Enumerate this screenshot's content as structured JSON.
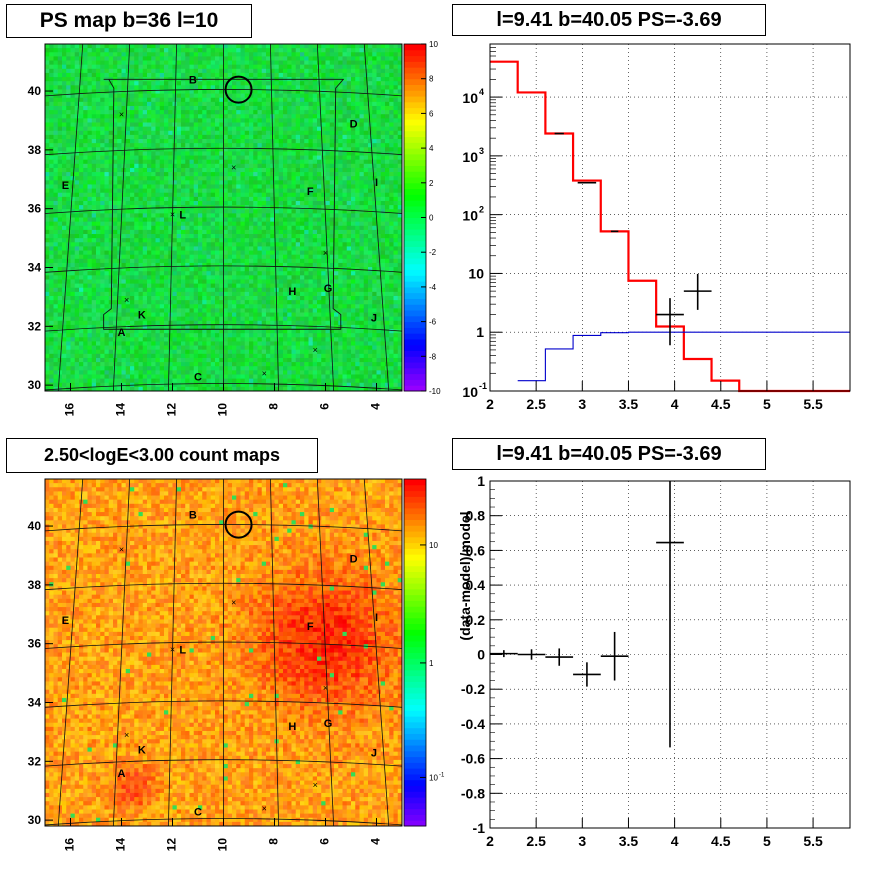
{
  "panels": {
    "ps_map": {
      "title": "PS map b=36 l=10"
    },
    "count_map": {
      "title": "2.50<logE<3.00 count maps"
    },
    "spectrum": {
      "title": "l=9.41 b=40.05 PS=-3.69"
    },
    "residual": {
      "title": "l=9.41 b=40.05 PS=-3.69"
    }
  },
  "chart_data": [
    {
      "type": "heatmap",
      "title": "PS map b=36 l=10",
      "xlabel": "",
      "ylabel": "",
      "x_range": [
        17,
        3
      ],
      "y_range": [
        29.8,
        41.6
      ],
      "x_ticks": [
        "16",
        "14",
        "12",
        "10",
        "8",
        "6",
        "4"
      ],
      "y_ticks": [
        "30",
        "32",
        "34",
        "36",
        "38",
        "40"
      ],
      "colorbar": {
        "scale": "linear",
        "range": [
          -10,
          10
        ],
        "ticks": [
          "10",
          "8",
          "6",
          "4",
          "2",
          "0",
          "-2",
          "-4",
          "-6",
          "-8",
          "-10"
        ]
      },
      "source_labels": [
        {
          "label": "A",
          "l": 14.0,
          "b": 31.8
        },
        {
          "label": "B",
          "l": 11.2,
          "b": 40.4
        },
        {
          "label": "C",
          "l": 11.0,
          "b": 30.3
        },
        {
          "label": "D",
          "l": 4.9,
          "b": 38.9
        },
        {
          "label": "E",
          "l": 16.2,
          "b": 36.8
        },
        {
          "label": "F",
          "l": 6.6,
          "b": 36.6
        },
        {
          "label": "G",
          "l": 5.9,
          "b": 33.3
        },
        {
          "label": "H",
          "l": 7.3,
          "b": 33.2
        },
        {
          "label": "I",
          "l": 4.0,
          "b": 36.9
        },
        {
          "label": "J",
          "l": 4.1,
          "b": 32.3
        },
        {
          "label": "K",
          "l": 13.2,
          "b": 32.4
        },
        {
          "label": "L",
          "l": 11.6,
          "b": 35.8
        }
      ]
    },
    {
      "type": "heatmap",
      "title": "2.50<logE<3.00 count maps",
      "xlabel": "",
      "ylabel": "",
      "x_range": [
        17,
        3
      ],
      "y_range": [
        29.8,
        41.6
      ],
      "x_ticks": [
        "16",
        "14",
        "12",
        "10",
        "8",
        "6",
        "4"
      ],
      "y_ticks": [
        "30",
        "32",
        "34",
        "36",
        "38",
        "40"
      ],
      "colorbar": {
        "scale": "log",
        "ticks": [
          "10",
          "1",
          "10^-1"
        ]
      },
      "source_labels": [
        {
          "label": "A",
          "l": 14.0,
          "b": 31.6
        },
        {
          "label": "B",
          "l": 11.2,
          "b": 40.4
        },
        {
          "label": "C",
          "l": 11.0,
          "b": 30.3
        },
        {
          "label": "D",
          "l": 4.9,
          "b": 38.9
        },
        {
          "label": "E",
          "l": 16.2,
          "b": 36.8
        },
        {
          "label": "F",
          "l": 6.6,
          "b": 36.6
        },
        {
          "label": "G",
          "l": 5.9,
          "b": 33.3
        },
        {
          "label": "H",
          "l": 7.3,
          "b": 33.2
        },
        {
          "label": "I",
          "l": 4.0,
          "b": 36.9
        },
        {
          "label": "J",
          "l": 4.1,
          "b": 32.3
        },
        {
          "label": "K",
          "l": 13.2,
          "b": 32.4
        },
        {
          "label": "L",
          "l": 11.6,
          "b": 35.8
        }
      ]
    },
    {
      "type": "line",
      "title": "l=9.41 b=40.05 PS=-3.69",
      "xlabel": "",
      "ylabel": "",
      "xlim": [
        2,
        5.9
      ],
      "ylim": [
        0.1,
        80000
      ],
      "yscale": "log",
      "x_ticks": [
        2,
        2.5,
        3,
        3.5,
        4,
        4.5,
        5,
        5.5
      ],
      "y_ticks": [
        "10^-1",
        "1",
        "10",
        "10^2",
        "10^3",
        "10^4"
      ],
      "grid": true,
      "series": [
        {
          "line": "step",
          "color": "#ff0000",
          "edges": [
            2,
            2.3,
            2.6,
            2.9,
            3.2,
            3.5,
            3.8,
            4.1,
            4.4,
            4.7,
            5.9
          ],
          "values": [
            40000,
            12000,
            2400,
            380,
            52,
            7.5,
            1.25,
            0.35,
            0.15,
            0.1
          ]
        },
        {
          "line": "step",
          "color": "#0000cc",
          "edges": [
            2.3,
            2.6,
            2.9,
            3.2,
            3.5,
            3.8,
            4.1,
            5.9
          ],
          "values": [
            0.15,
            0.52,
            0.88,
            0.98,
            1.0,
            1.0,
            1.0
          ]
        },
        {
          "line": "points",
          "color": "#000000",
          "points": [
            {
              "x": 2.75,
              "y": 2400,
              "xerr": 0.05,
              "yerr": 0
            },
            {
              "x": 3.05,
              "y": 350,
              "xerr": 0.1,
              "yerr": 0
            },
            {
              "x": 3.35,
              "y": 52,
              "xerr": 0.04,
              "yerr": 0
            },
            {
              "x": 3.95,
              "y": 2.0,
              "xerr": 0.15,
              "yerr_low": 1.4,
              "yerr_high": 1.8
            },
            {
              "x": 4.25,
              "y": 5.0,
              "xerr": 0.15,
              "yerr_low": 2.6,
              "yerr_high": 4.8
            }
          ]
        }
      ]
    },
    {
      "type": "scatter",
      "title": "l=9.41 b=40.05 PS=-3.69",
      "xlabel": "",
      "ylabel": "(data-model)/model",
      "xlim": [
        2,
        5.9
      ],
      "ylim": [
        -1,
        1
      ],
      "x_ticks": [
        2,
        2.5,
        3,
        3.5,
        4,
        4.5,
        5,
        5.5
      ],
      "y_ticks": [
        -1,
        -0.8,
        -0.6,
        -0.4,
        -0.2,
        0,
        0.2,
        0.4,
        0.6,
        0.8,
        1
      ],
      "grid": true,
      "series": [
        {
          "color": "#000000",
          "points": [
            {
              "x": 2.15,
              "y": 0.005,
              "xerr": 0.15,
              "yerr": 0.02
            },
            {
              "x": 2.45,
              "y": 0.0,
              "xerr": 0.15,
              "yerr": 0.03
            },
            {
              "x": 2.75,
              "y": -0.015,
              "xerr": 0.15,
              "yerr": 0.05
            },
            {
              "x": 3.05,
              "y": -0.115,
              "xerr": 0.15,
              "yerr": 0.07
            },
            {
              "x": 3.35,
              "y": -0.01,
              "xerr": 0.15,
              "yerr": 0.14
            },
            {
              "x": 3.95,
              "y": 0.645,
              "xerr": 0.15,
              "yerr_low": 1.18,
              "yerr_high": 0.36
            }
          ]
        }
      ]
    }
  ]
}
